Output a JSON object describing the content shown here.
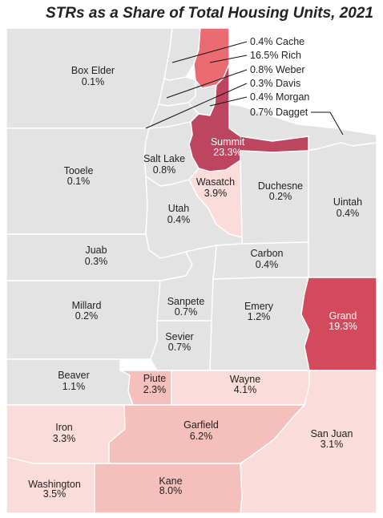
{
  "title": "STRs as a Share of Total Housing Units, 2021",
  "colors": {
    "none": "#e3e3e3",
    "low": "#fadcda",
    "mid": "#f5c0bb",
    "high": "#ea6b72",
    "top": "#d24a5c",
    "summit": "#bd4560",
    "border": "#ffffff"
  },
  "counties": [
    {
      "id": "box-elder",
      "name": "Box Elder",
      "value": "0.1%"
    },
    {
      "id": "cache",
      "name": "Cache",
      "value": "0.4%"
    },
    {
      "id": "rich",
      "name": "Rich",
      "value": "16.5%"
    },
    {
      "id": "weber",
      "name": "Weber",
      "value": "0.8%"
    },
    {
      "id": "davis",
      "name": "Davis",
      "value": "0.3%"
    },
    {
      "id": "morgan",
      "name": "Morgan",
      "value": "0.4%"
    },
    {
      "id": "daggett",
      "name": "Dagget",
      "value": "0.7%"
    },
    {
      "id": "summit",
      "name": "Summit",
      "value": "23.3%"
    },
    {
      "id": "salt-lake",
      "name": "Salt Lake",
      "value": "0.8%"
    },
    {
      "id": "tooele",
      "name": "Tooele",
      "value": "0.1%"
    },
    {
      "id": "wasatch",
      "name": "Wasatch",
      "value": "3.9%"
    },
    {
      "id": "duchesne",
      "name": "Duchesne",
      "value": "0.2%"
    },
    {
      "id": "uintah",
      "name": "Uintah",
      "value": "0.4%"
    },
    {
      "id": "utah",
      "name": "Utah",
      "value": "0.4%"
    },
    {
      "id": "juab",
      "name": "Juab",
      "value": "0.3%"
    },
    {
      "id": "carbon",
      "name": "Carbon",
      "value": "0.4%"
    },
    {
      "id": "millard",
      "name": "Millard",
      "value": "0.2%"
    },
    {
      "id": "sanpete",
      "name": "Sanpete",
      "value": "0.7%"
    },
    {
      "id": "emery",
      "name": "Emery",
      "value": "1.2%"
    },
    {
      "id": "grand",
      "name": "Grand",
      "value": "19.3%"
    },
    {
      "id": "sevier",
      "name": "Sevier",
      "value": "0.7%"
    },
    {
      "id": "beaver",
      "name": "Beaver",
      "value": "1.1%"
    },
    {
      "id": "piute",
      "name": "Piute",
      "value": "2.3%"
    },
    {
      "id": "wayne",
      "name": "Wayne",
      "value": "4.1%"
    },
    {
      "id": "iron",
      "name": "Iron",
      "value": "3.3%"
    },
    {
      "id": "garfield",
      "name": "Garfield",
      "value": "6.2%"
    },
    {
      "id": "san-juan",
      "name": "San Juan",
      "value": "3.1%"
    },
    {
      "id": "washington",
      "name": "Washington",
      "value": "3.5%"
    },
    {
      "id": "kane",
      "name": "Kane",
      "value": "8.0%"
    }
  ],
  "callout_labels": {
    "cache": "0.4% Cache",
    "rich": "16.5% Rich",
    "weber": "0.8% Weber",
    "davis": "0.3% Davis",
    "morgan": "0.4% Morgan",
    "daggett": "0.7% Dagget"
  }
}
